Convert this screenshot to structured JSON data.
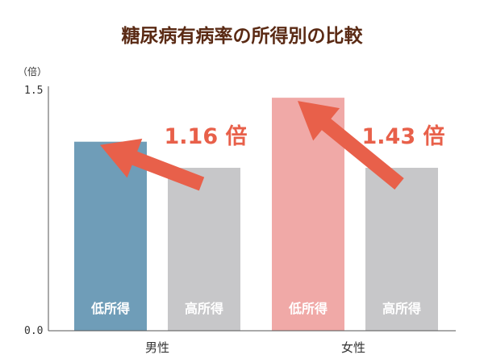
{
  "chart_data": {
    "type": "bar",
    "title": "糖尿病有病率の所得別の比較",
    "ylabel": "（倍）",
    "ylim": [
      0,
      1.5
    ],
    "yticks": [
      "1.5",
      "0.0"
    ],
    "categories": [
      "男性",
      "女性"
    ],
    "series": [
      {
        "name": "低所得",
        "values": [
          1.16,
          1.43
        ]
      },
      {
        "name": "高所得",
        "values": [
          1.0,
          1.0
        ]
      }
    ],
    "annotations": [
      {
        "category": "男性",
        "text": "1.16 倍"
      },
      {
        "category": "女性",
        "text": "1.43 倍"
      }
    ],
    "colors": {
      "male_low": "#6f9db8",
      "female_low": "#f0a9a7",
      "high": "#c7c7c9",
      "arrow": "#e8604a",
      "title": "#5a2a14"
    },
    "grid": false,
    "legend": "none"
  }
}
